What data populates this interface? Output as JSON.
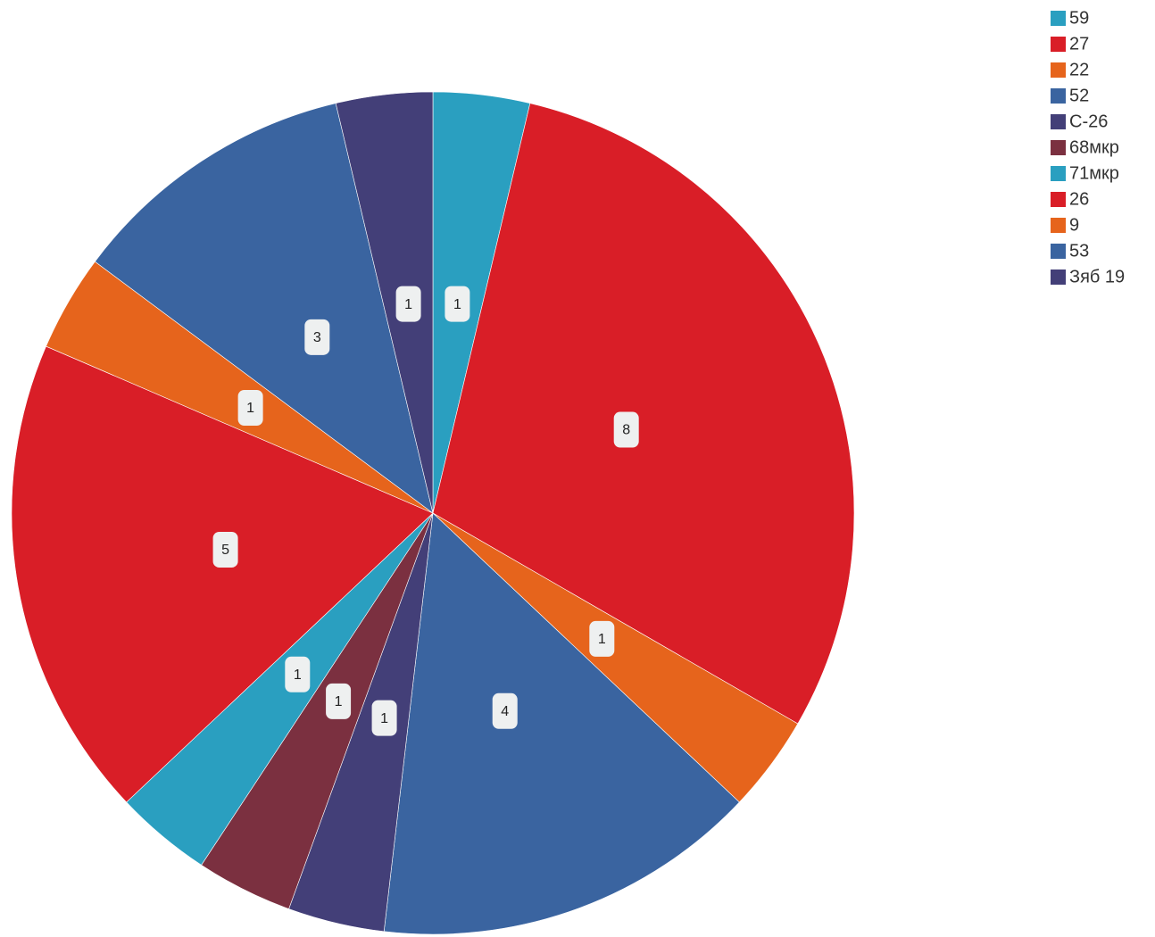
{
  "chart_data": {
    "type": "pie",
    "categories": [
      "59",
      "27",
      "22",
      "52",
      "C-26",
      "68мкр",
      "71мкр",
      "26",
      "9",
      "53",
      "Зяб 19"
    ],
    "values": [
      1,
      8,
      1,
      4,
      1,
      1,
      1,
      5,
      1,
      3,
      1
    ],
    "colors": [
      "#2a9fc0",
      "#d91e27",
      "#e6641c",
      "#3a64a0",
      "#433f78",
      "#7b3040",
      "#2a9fc0",
      "#d91e27",
      "#e6641c",
      "#3a64a0",
      "#433f78"
    ],
    "legend": "top-right"
  }
}
